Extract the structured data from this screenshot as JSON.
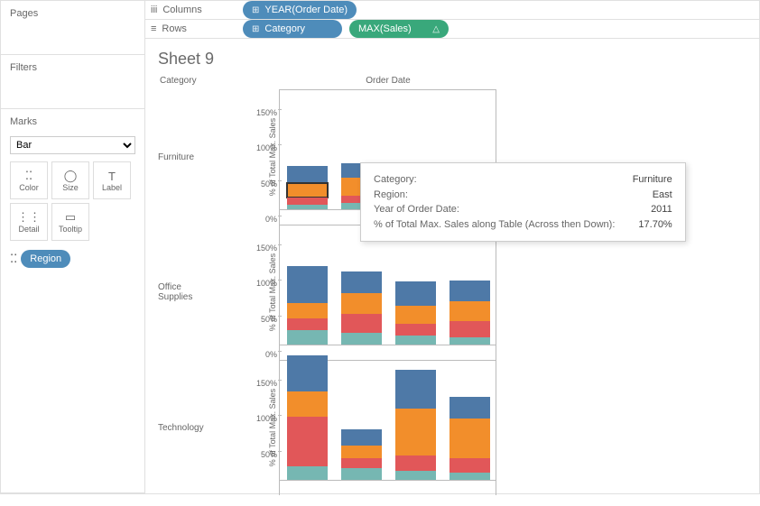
{
  "panels": {
    "pages": "Pages",
    "filters": "Filters",
    "marks": "Marks",
    "mark_type": "Bar",
    "cards": [
      {
        "name": "color",
        "label": "Color",
        "icon": "⁚⁚"
      },
      {
        "name": "size",
        "label": "Size",
        "icon": "◯"
      },
      {
        "name": "label",
        "label": "Label",
        "icon": "T"
      },
      {
        "name": "detail",
        "label": "Detail",
        "icon": "⋮⋮"
      },
      {
        "name": "tooltip",
        "label": "Tooltip",
        "icon": "▭"
      }
    ],
    "region_pill": "Region"
  },
  "shelves": {
    "columns_label": "Columns",
    "rows_label": "Rows",
    "columns": [
      {
        "label": "YEAR(Order Date)",
        "color": "blue",
        "icon": "⊞"
      }
    ],
    "rows": [
      {
        "label": "Category",
        "color": "blue",
        "icon": "⊞"
      },
      {
        "label": "MAX(Sales)",
        "color": "green",
        "icon": "",
        "extra": "△"
      }
    ]
  },
  "sheet": {
    "title": "Sheet 9",
    "category_header": "Category",
    "orderdate_header": "Order Date",
    "y_title": "% of Total Max. Sales",
    "colors": {
      "central": "#76b7b2",
      "east": "#e15759",
      "south": "#f28e2b",
      "west": "#4e79a7"
    },
    "ymax_pct": 170,
    "rows": [
      {
        "cat": "Furniture",
        "ticks": [
          0,
          50,
          100,
          150
        ],
        "bars": [
          {
            "segs": [
              8,
              10,
              20,
              24
            ]
          },
          {
            "segs": [
              10,
              10,
              26,
              20
            ]
          },
          {
            "segs": [
              6,
              10,
              24,
              12
            ]
          },
          {
            "segs": [
              8,
              10,
              20,
              14
            ]
          }
        ]
      },
      {
        "cat": "Office\nSupplies",
        "ticks": [
          0,
          50,
          100,
          150
        ],
        "bars": [
          {
            "segs": [
              22,
              16,
              22,
              52
            ]
          },
          {
            "segs": [
              18,
              26,
              30,
              30
            ]
          },
          {
            "segs": [
              14,
              16,
              26,
              34
            ]
          },
          {
            "segs": [
              12,
              22,
              28,
              30
            ]
          }
        ]
      },
      {
        "cat": "Technology",
        "ticks": [
          50,
          100,
          150
        ],
        "bars": [
          {
            "segs": [
              20,
              70,
              36,
              50
            ]
          },
          {
            "segs": [
              18,
              14,
              18,
              22
            ]
          },
          {
            "segs": [
              14,
              22,
              66,
              54
            ]
          },
          {
            "segs": [
              12,
              20,
              56,
              30
            ]
          }
        ]
      }
    ]
  },
  "tooltip": {
    "rows": [
      {
        "k": "Category:",
        "v": "Furniture"
      },
      {
        "k": "Region:",
        "v": "East"
      },
      {
        "k": "Year of Order Date:",
        "v": "2011"
      },
      {
        "k": "% of Total Max. Sales along Table (Across then Down):",
        "v": "17.70%"
      }
    ]
  }
}
